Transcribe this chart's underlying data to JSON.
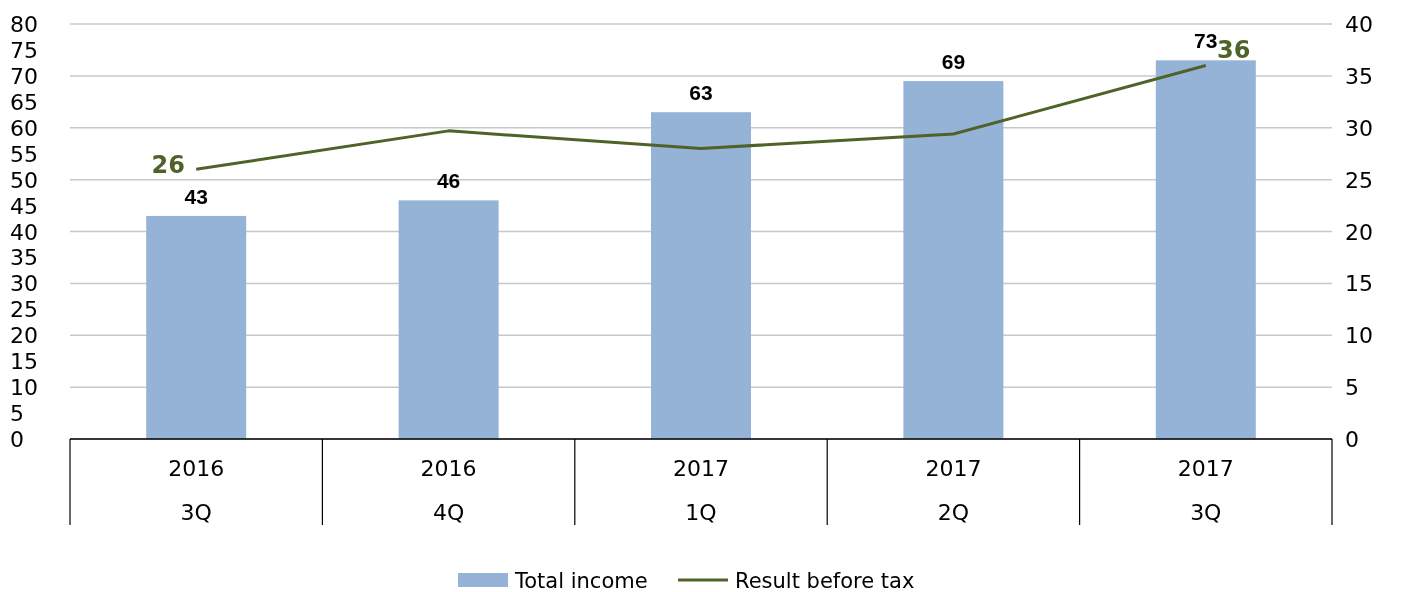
{
  "chart_data": {
    "type": "bar",
    "categories": [
      "2016 3Q",
      "2016 4Q",
      "2017 1Q",
      "2017 2Q",
      "2017 3Q"
    ],
    "series": [
      {
        "name": "Total income",
        "color": "#95b3d7",
        "values": [
          43,
          46,
          63,
          69,
          73
        ],
        "value_labels": [
          "43",
          "46",
          "63",
          "69",
          "73"
        ]
      },
      {
        "name": "Result before tax",
        "type": "line",
        "axis": "y2",
        "color": "#4f6228",
        "values": [
          26,
          29.7,
          28,
          29.4,
          36
        ],
        "value_labels": [
          "26",
          null,
          null,
          null,
          "36"
        ]
      }
    ],
    "ylim": [
      0,
      80
    ],
    "yticks": [
      0,
      5,
      10,
      15,
      20,
      25,
      30,
      35,
      40,
      45,
      50,
      55,
      60,
      65,
      70,
      75,
      80
    ],
    "y2lim": [
      0,
      40
    ],
    "y2ticks": [
      0,
      5,
      10,
      15,
      20,
      25,
      30,
      35,
      40
    ],
    "grid": true,
    "legend": "bottom",
    "marker": "none",
    "line_style": "solid"
  }
}
